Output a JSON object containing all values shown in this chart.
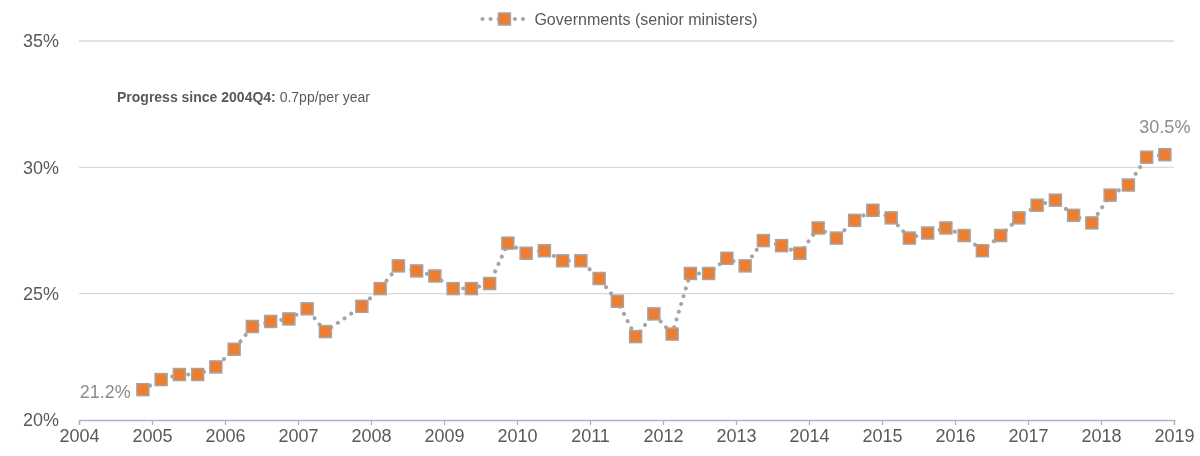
{
  "chart_data": {
    "type": "line",
    "x": [
      2004.875,
      2005.125,
      2005.375,
      2005.625,
      2005.875,
      2006.125,
      2006.375,
      2006.625,
      2006.875,
      2007.125,
      2007.375,
      2007.875,
      2008.125,
      2008.375,
      2008.625,
      2008.875,
      2009.125,
      2009.375,
      2009.625,
      2009.875,
      2010.125,
      2010.375,
      2010.625,
      2010.875,
      2011.125,
      2011.375,
      2011.625,
      2011.875,
      2012.125,
      2012.375,
      2012.625,
      2012.875,
      2013.125,
      2013.375,
      2013.625,
      2013.875,
      2014.125,
      2014.375,
      2014.625,
      2014.875,
      2015.125,
      2015.375,
      2015.625,
      2015.875,
      2016.125,
      2016.375,
      2016.625,
      2016.875,
      2017.125,
      2017.375,
      2017.625,
      2017.875,
      2018.125,
      2018.375,
      2018.625,
      2018.875
    ],
    "series": [
      {
        "name": "Governments (senior ministers)",
        "color": "#ed7d31",
        "values": [
          21.2,
          21.6,
          21.8,
          21.8,
          22.1,
          22.8,
          23.7,
          23.9,
          24.0,
          24.4,
          23.5,
          24.5,
          25.2,
          26.1,
          25.9,
          25.7,
          25.2,
          25.2,
          25.4,
          27.0,
          26.6,
          26.7,
          26.3,
          26.3,
          25.6,
          24.7,
          23.3,
          24.2,
          23.4,
          25.8,
          25.8,
          26.4,
          26.1,
          27.1,
          26.9,
          26.6,
          27.6,
          27.2,
          27.9,
          28.3,
          28.0,
          27.2,
          27.4,
          27.6,
          27.3,
          26.7,
          27.3,
          28.0,
          28.5,
          28.7,
          28.1,
          27.8,
          28.9,
          29.3,
          30.4,
          30.5
        ],
        "value_labels": [
          "21.2%",
          null,
          null,
          null,
          null,
          null,
          null,
          null,
          null,
          null,
          null,
          null,
          null,
          null,
          null,
          null,
          null,
          null,
          null,
          null,
          null,
          null,
          null,
          null,
          null,
          null,
          null,
          null,
          null,
          null,
          null,
          null,
          null,
          null,
          null,
          null,
          null,
          null,
          null,
          null,
          null,
          null,
          null,
          null,
          null,
          null,
          null,
          null,
          null,
          null,
          null,
          null,
          null,
          null,
          null,
          "30.5%"
        ]
      }
    ],
    "xlim": [
      2004,
      2019
    ],
    "xticks": [
      2004,
      2005,
      2006,
      2007,
      2008,
      2009,
      2010,
      2011,
      2012,
      2013,
      2014,
      2015,
      2016,
      2017,
      2018,
      2019
    ],
    "ylim": [
      20,
      35
    ],
    "yticks": [
      {
        "value": 20,
        "label": "20%"
      },
      {
        "value": 25,
        "label": "25%"
      },
      {
        "value": 30,
        "label": "30%"
      },
      {
        "value": 35,
        "label": "35%"
      }
    ],
    "grid": "y",
    "legend": "top",
    "marker": "square",
    "line_style": "dotted",
    "annotations": [
      "Progress since 2004Q4: 0.7pp/per year"
    ]
  }
}
